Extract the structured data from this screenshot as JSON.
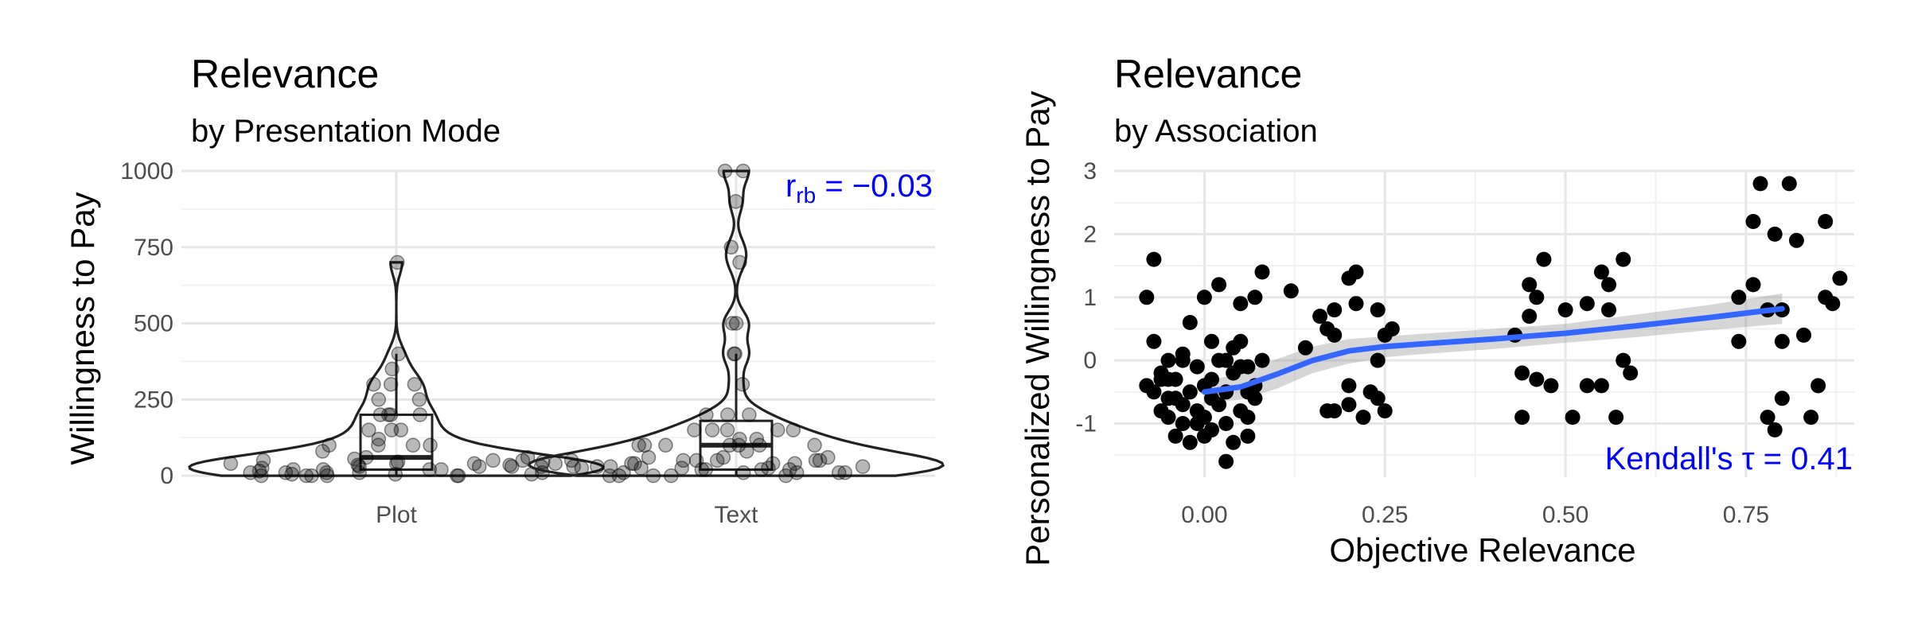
{
  "chart_data": [
    {
      "type": "violin",
      "title": "Relevance",
      "subtitle": "by Presentation Mode",
      "xlabel": "",
      "ylabel": "Willingness to Pay",
      "categories": [
        "Plot",
        "Text"
      ],
      "ylim": [
        -5,
        1000
      ],
      "yticks": [
        0,
        250,
        500,
        750,
        1000
      ],
      "annotation": {
        "base": "r",
        "sub": "rb",
        "rest": " = −0.03",
        "color": "#0000ff",
        "placement": "top-right"
      },
      "series": [
        {
          "name": "Plot",
          "box": {
            "q1": 20,
            "median": 60,
            "q3": 200,
            "whisker_low": 0,
            "whisker_high": 400
          },
          "values": [
            30,
            45,
            0,
            10,
            5,
            25,
            55,
            40,
            20,
            0,
            15,
            60,
            35,
            10,
            5,
            0,
            50,
            30,
            20,
            10,
            300,
            300,
            250,
            200,
            200,
            150,
            150,
            120,
            100,
            100,
            100,
            80,
            60,
            40,
            25,
            350,
            400,
            700,
            250,
            200,
            300,
            150,
            100,
            50,
            30,
            200,
            0,
            5,
            0,
            10,
            20,
            40,
            35,
            10,
            50,
            30,
            0,
            20,
            45
          ]
        },
        {
          "name": "Text",
          "box": {
            "q1": 20,
            "median": 100,
            "q3": 180,
            "whisker_low": 0,
            "whisker_high": 400
          },
          "values": [
            30,
            10,
            50,
            0,
            25,
            100,
            60,
            40,
            10,
            0,
            0,
            20,
            150,
            120,
            100,
            50,
            30,
            0,
            200,
            150,
            100,
            80,
            60,
            40,
            20,
            10,
            500,
            400,
            400,
            300,
            200,
            200,
            150,
            1000,
            1000,
            900,
            750,
            700,
            500,
            150,
            100,
            100,
            50,
            30,
            20,
            10,
            120,
            150,
            100,
            50,
            25,
            10,
            0,
            20,
            40,
            50,
            100,
            60,
            40,
            25,
            30,
            50,
            40
          ]
        }
      ],
      "grid": true,
      "legend": "none"
    },
    {
      "type": "scatter",
      "title": "Relevance",
      "subtitle": "by Association",
      "xlabel": "Objective Relevance",
      "ylabel": "Personalized Willingness to Pay",
      "xlim": [
        -0.125,
        0.9
      ],
      "ylim": [
        -1.85,
        3.0
      ],
      "xticks": [
        0.0,
        0.25,
        0.5,
        0.75
      ],
      "xtick_labels": [
        "0.00",
        "0.25",
        "0.50",
        "0.75"
      ],
      "yticks": [
        -1,
        0,
        1,
        2,
        3
      ],
      "points": [
        [
          -0.07,
          1.6
        ],
        [
          -0.08,
          1.0
        ],
        [
          -0.07,
          0.3
        ],
        [
          -0.08,
          -0.4
        ],
        [
          -0.07,
          -0.5
        ],
        [
          -0.06,
          -0.8
        ],
        [
          -0.05,
          -0.9
        ],
        [
          -0.06,
          -0.2
        ],
        [
          -0.05,
          0.0
        ],
        [
          -0.04,
          -0.3
        ],
        [
          -0.04,
          -0.6
        ],
        [
          -0.03,
          -0.7
        ],
        [
          -0.03,
          -1.0
        ],
        [
          -0.04,
          -1.2
        ],
        [
          -0.02,
          -0.5
        ],
        [
          -0.02,
          0.6
        ],
        [
          -0.01,
          -0.1
        ],
        [
          -0.01,
          -0.8
        ],
        [
          0.0,
          -0.4
        ],
        [
          0.0,
          -0.9
        ],
        [
          -0.03,
          0.1
        ],
        [
          -0.02,
          -1.3
        ],
        [
          0.01,
          -0.3
        ],
        [
          0.01,
          0.3
        ],
        [
          0.01,
          -1.1
        ],
        [
          0.02,
          -0.7
        ],
        [
          0.02,
          0.0
        ],
        [
          0.03,
          -1.0
        ],
        [
          0.03,
          -0.5
        ],
        [
          0.04,
          0.2
        ],
        [
          0.04,
          -1.3
        ],
        [
          0.05,
          -0.8
        ],
        [
          0.05,
          0.3
        ],
        [
          0.06,
          -0.1
        ],
        [
          0.06,
          -0.9
        ],
        [
          0.07,
          -0.4
        ],
        [
          0.07,
          1.0
        ],
        [
          0.08,
          1.4
        ],
        [
          0.08,
          0.0
        ],
        [
          0.06,
          -1.2
        ],
        [
          0.07,
          -0.6
        ],
        [
          0.03,
          -1.6
        ],
        [
          0.05,
          0.9
        ],
        [
          0.02,
          1.2
        ],
        [
          0.0,
          1.0
        ],
        [
          -0.03,
          0.0
        ],
        [
          -0.06,
          -0.3
        ],
        [
          0.01,
          -0.6
        ],
        [
          0.04,
          -0.2
        ],
        [
          0.06,
          -0.5
        ],
        [
          0.03,
          0.0
        ],
        [
          -0.05,
          -0.6
        ],
        [
          -0.01,
          -1.0
        ],
        [
          0.0,
          -1.2
        ],
        [
          -0.05,
          -0.3
        ],
        [
          0.05,
          -0.1
        ],
        [
          0.12,
          1.1
        ],
        [
          0.14,
          0.2
        ],
        [
          0.16,
          0.7
        ],
        [
          0.17,
          0.5
        ],
        [
          0.17,
          -0.8
        ],
        [
          0.18,
          0.4
        ],
        [
          0.18,
          -0.8
        ],
        [
          0.18,
          0.8
        ],
        [
          0.2,
          -0.4
        ],
        [
          0.2,
          -0.7
        ],
        [
          0.2,
          1.3
        ],
        [
          0.21,
          1.4
        ],
        [
          0.21,
          0.9
        ],
        [
          0.22,
          -0.9
        ],
        [
          0.23,
          -0.5
        ],
        [
          0.24,
          -0.6
        ],
        [
          0.24,
          0.8
        ],
        [
          0.25,
          0.4
        ],
        [
          0.25,
          -0.8
        ],
        [
          0.26,
          0.5
        ],
        [
          0.24,
          0.0
        ],
        [
          0.43,
          0.4
        ],
        [
          0.44,
          -0.9
        ],
        [
          0.45,
          1.2
        ],
        [
          0.45,
          0.7
        ],
        [
          0.46,
          1.0
        ],
        [
          0.46,
          -0.3
        ],
        [
          0.47,
          1.6
        ],
        [
          0.48,
          -0.4
        ],
        [
          0.5,
          0.8
        ],
        [
          0.53,
          0.9
        ],
        [
          0.53,
          -0.4
        ],
        [
          0.55,
          1.4
        ],
        [
          0.55,
          -0.4
        ],
        [
          0.56,
          0.8
        ],
        [
          0.56,
          1.2
        ],
        [
          0.57,
          -0.9
        ],
        [
          0.58,
          1.6
        ],
        [
          0.58,
          0.0
        ],
        [
          0.59,
          -0.2
        ],
        [
          0.51,
          -0.9
        ],
        [
          0.44,
          -0.2
        ],
        [
          0.74,
          1.0
        ],
        [
          0.74,
          0.3
        ],
        [
          0.76,
          2.2
        ],
        [
          0.76,
          1.2
        ],
        [
          0.77,
          2.8
        ],
        [
          0.78,
          0.8
        ],
        [
          0.78,
          -0.9
        ],
        [
          0.79,
          2.0
        ],
        [
          0.79,
          -1.1
        ],
        [
          0.8,
          0.3
        ],
        [
          0.8,
          0.8
        ],
        [
          0.8,
          -0.6
        ],
        [
          0.81,
          2.8
        ],
        [
          0.82,
          1.9
        ],
        [
          0.83,
          0.4
        ],
        [
          0.84,
          -0.9
        ],
        [
          0.85,
          -0.4
        ],
        [
          0.86,
          1.0
        ],
        [
          0.86,
          2.2
        ],
        [
          0.87,
          0.9
        ],
        [
          0.88,
          1.3
        ]
      ],
      "smooth": {
        "color": "#3366ff",
        "x": [
          0.0,
          0.05,
          0.1,
          0.15,
          0.2,
          0.25,
          0.3,
          0.4,
          0.5,
          0.6,
          0.7,
          0.8
        ],
        "y": [
          -0.5,
          -0.42,
          -0.22,
          0.0,
          0.15,
          0.22,
          0.26,
          0.34,
          0.43,
          0.55,
          0.68,
          0.82
        ],
        "lower": [
          -0.68,
          -0.62,
          -0.45,
          -0.2,
          -0.05,
          0.05,
          0.1,
          0.18,
          0.28,
          0.37,
          0.48,
          0.58
        ],
        "upper": [
          -0.32,
          -0.22,
          0.02,
          0.22,
          0.34,
          0.38,
          0.42,
          0.5,
          0.58,
          0.73,
          0.88,
          1.06
        ]
      },
      "annotation": {
        "text": "Kendall's τ = 0.41",
        "color": "#0000ff",
        "placement": "bottom-right"
      },
      "grid": true,
      "legend": "none"
    }
  ]
}
